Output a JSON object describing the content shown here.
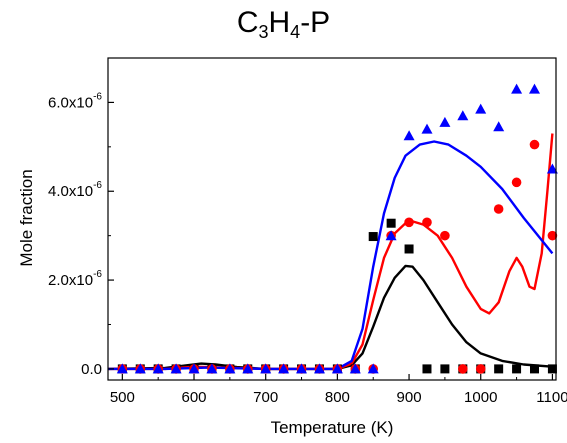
{
  "chart_data": {
    "type": "line",
    "title_main": "C",
    "title_sub1": "3",
    "title_mid": "H",
    "title_sub2": "4",
    "title_tail": "-P",
    "xlabel": "Temperature (K)",
    "ylabel": "Mole fraction",
    "xlim": [
      480,
      1105
    ],
    "ylim": [
      -2.5e-07,
      7e-06
    ],
    "x_ticks": [
      500,
      600,
      700,
      800,
      900,
      1000,
      1100
    ],
    "x_tick_labels": [
      "500",
      "600",
      "700",
      "800",
      "900",
      "1000",
      "1100"
    ],
    "y_ticks": [
      0,
      2e-06,
      4e-06,
      6e-06
    ],
    "y_tick_labels": [
      {
        "base": "0.0",
        "exp": ""
      },
      {
        "base": "2.0x10",
        "exp": "-6"
      },
      {
        "base": "4.0x10",
        "exp": "-6"
      },
      {
        "base": "6.0x10",
        "exp": "-6"
      }
    ],
    "grid": false,
    "series": [
      {
        "kind": "line",
        "color": "#000000",
        "points": [
          [
            480,
            0
          ],
          [
            560,
            2e-08
          ],
          [
            590,
            8e-08
          ],
          [
            610,
            1.2e-07
          ],
          [
            630,
            1e-07
          ],
          [
            660,
            4e-08
          ],
          [
            700,
            0
          ],
          [
            800,
            0
          ],
          [
            820,
            8e-08
          ],
          [
            835,
            3.5e-07
          ],
          [
            850,
            9.5e-07
          ],
          [
            865,
            1.6e-06
          ],
          [
            880,
            2.05e-06
          ],
          [
            895,
            2.32e-06
          ],
          [
            905,
            2.3e-06
          ],
          [
            920,
            2e-06
          ],
          [
            940,
            1.5e-06
          ],
          [
            960,
            1e-06
          ],
          [
            980,
            6e-07
          ],
          [
            1000,
            3.5e-07
          ],
          [
            1030,
            1.8e-07
          ],
          [
            1060,
            1e-07
          ],
          [
            1100,
            5e-08
          ]
        ]
      },
      {
        "kind": "line",
        "color": "#ff0000",
        "points": [
          [
            480,
            0
          ],
          [
            560,
            0
          ],
          [
            600,
            5e-08
          ],
          [
            640,
            3e-08
          ],
          [
            700,
            0
          ],
          [
            800,
            0
          ],
          [
            820,
            1.2e-07
          ],
          [
            835,
            5.5e-07
          ],
          [
            850,
            1.55e-06
          ],
          [
            865,
            2.5e-06
          ],
          [
            880,
            3.05e-06
          ],
          [
            895,
            3.28e-06
          ],
          [
            905,
            3.32e-06
          ],
          [
            920,
            3.25e-06
          ],
          [
            940,
            3e-06
          ],
          [
            960,
            2.5e-06
          ],
          [
            980,
            1.85e-06
          ],
          [
            1000,
            1.35e-06
          ],
          [
            1012,
            1.25e-06
          ],
          [
            1025,
            1.5e-06
          ],
          [
            1040,
            2.2e-06
          ],
          [
            1050,
            2.5e-06
          ],
          [
            1058,
            2.3e-06
          ],
          [
            1068,
            1.85e-06
          ],
          [
            1075,
            1.8e-06
          ],
          [
            1085,
            2.6e-06
          ],
          [
            1093,
            4e-06
          ],
          [
            1100,
            5.3e-06
          ]
        ]
      },
      {
        "kind": "line",
        "color": "#0000ff",
        "points": [
          [
            480,
            0
          ],
          [
            560,
            0
          ],
          [
            620,
            3e-08
          ],
          [
            700,
            0
          ],
          [
            800,
            0
          ],
          [
            820,
            1.8e-07
          ],
          [
            835,
            9e-07
          ],
          [
            850,
            2.3e-06
          ],
          [
            865,
            3.5e-06
          ],
          [
            880,
            4.3e-06
          ],
          [
            895,
            4.8e-06
          ],
          [
            915,
            5.05e-06
          ],
          [
            935,
            5.12e-06
          ],
          [
            955,
            5.05e-06
          ],
          [
            980,
            4.8e-06
          ],
          [
            1000,
            4.55e-06
          ],
          [
            1030,
            4.05e-06
          ],
          [
            1060,
            3.4e-06
          ],
          [
            1100,
            2.6e-06
          ]
        ]
      },
      {
        "kind": "scatter",
        "marker": "square",
        "color": "#000000",
        "points": [
          [
            500,
            0
          ],
          [
            525,
            0
          ],
          [
            550,
            0
          ],
          [
            575,
            0
          ],
          [
            600,
            0
          ],
          [
            625,
            0
          ],
          [
            650,
            0
          ],
          [
            675,
            0
          ],
          [
            700,
            0
          ],
          [
            725,
            0
          ],
          [
            750,
            0
          ],
          [
            775,
            0
          ],
          [
            800,
            0
          ],
          [
            825,
            0
          ],
          [
            850,
            2.98e-06
          ],
          [
            875,
            3.28e-06
          ],
          [
            900,
            2.7e-06
          ],
          [
            925,
            0
          ],
          [
            950,
            0
          ],
          [
            975,
            0
          ],
          [
            1000,
            0
          ],
          [
            1025,
            0
          ],
          [
            1050,
            0
          ],
          [
            1075,
            0
          ],
          [
            1100,
            0
          ]
        ]
      },
      {
        "kind": "scatter",
        "marker": "circle",
        "color": "#ff0000",
        "points": [
          [
            500,
            0
          ],
          [
            525,
            0
          ],
          [
            550,
            0
          ],
          [
            575,
            0
          ],
          [
            600,
            0
          ],
          [
            625,
            0
          ],
          [
            650,
            0
          ],
          [
            675,
            0
          ],
          [
            700,
            0
          ],
          [
            725,
            0
          ],
          [
            750,
            0
          ],
          [
            775,
            0
          ],
          [
            800,
            0
          ],
          [
            825,
            0
          ],
          [
            850,
            0
          ],
          [
            875,
            3e-06
          ],
          [
            900,
            3.3e-06
          ],
          [
            925,
            3.3e-06
          ],
          [
            950,
            3e-06
          ],
          [
            975,
            0
          ],
          [
            1000,
            0
          ],
          [
            1025,
            3.6e-06
          ],
          [
            1050,
            4.2e-06
          ],
          [
            1075,
            5.05e-06
          ],
          [
            1100,
            3e-06
          ]
        ]
      },
      {
        "kind": "scatter",
        "marker": "triangle",
        "color": "#0000ff",
        "points": [
          [
            500,
            0
          ],
          [
            525,
            0
          ],
          [
            550,
            0
          ],
          [
            575,
            0
          ],
          [
            600,
            0
          ],
          [
            625,
            0
          ],
          [
            650,
            0
          ],
          [
            675,
            0
          ],
          [
            700,
            0
          ],
          [
            725,
            0
          ],
          [
            750,
            0
          ],
          [
            775,
            0
          ],
          [
            800,
            0
          ],
          [
            825,
            0
          ],
          [
            850,
            0
          ],
          [
            875,
            3e-06
          ],
          [
            900,
            5.25e-06
          ],
          [
            925,
            5.4e-06
          ],
          [
            950,
            5.55e-06
          ],
          [
            975,
            5.7e-06
          ],
          [
            1000,
            5.85e-06
          ],
          [
            1025,
            5.45e-06
          ],
          [
            1050,
            6.3e-06
          ],
          [
            1075,
            6.3e-06
          ],
          [
            1100,
            4.5e-06
          ]
        ]
      }
    ]
  }
}
